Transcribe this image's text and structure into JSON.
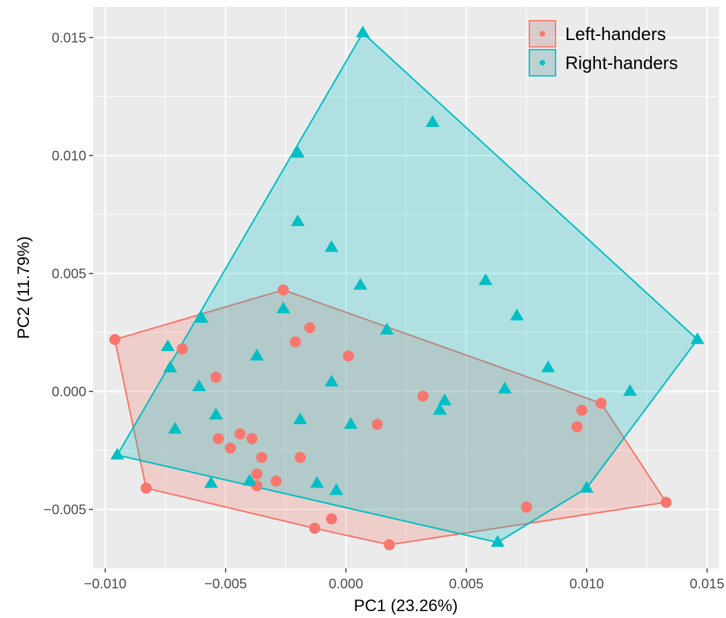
{
  "chart_data": {
    "type": "scatter",
    "xlabel": "PC1 (23.26%)",
    "ylabel": "PC2 (11.79%)",
    "xlim": [
      -0.0105,
      0.0155
    ],
    "ylim": [
      -0.0075,
      0.0163
    ],
    "x_ticks": [
      -0.01,
      -0.005,
      0.0,
      0.005,
      0.01,
      0.015
    ],
    "x_tick_labels": [
      "−0.010",
      "−0.005",
      "0.000",
      "0.005",
      "0.010",
      "0.015"
    ],
    "y_ticks": [
      -0.005,
      0.0,
      0.005,
      0.01,
      0.015
    ],
    "y_tick_labels": [
      "−0.005",
      "0.000",
      "0.005",
      "0.010",
      "0.015"
    ],
    "grid": true,
    "legend_position": "top-right",
    "series": [
      {
        "name": "Left-handers",
        "marker": "circle",
        "color": "#F8766D",
        "hull_fill_opacity": 0.25,
        "points": [
          [
            -0.0096,
            0.0022
          ],
          [
            -0.0083,
            -0.0041
          ],
          [
            -0.0068,
            0.0018
          ],
          [
            -0.0054,
            0.0006
          ],
          [
            -0.0053,
            -0.002
          ],
          [
            -0.0048,
            -0.0024
          ],
          [
            -0.0044,
            -0.0018
          ],
          [
            -0.0039,
            -0.002
          ],
          [
            -0.0037,
            -0.0035
          ],
          [
            -0.0037,
            -0.004
          ],
          [
            -0.0035,
            -0.0028
          ],
          [
            -0.0029,
            -0.0038
          ],
          [
            -0.0026,
            0.0043
          ],
          [
            -0.0021,
            0.0021
          ],
          [
            -0.0019,
            -0.0028
          ],
          [
            -0.0015,
            0.0027
          ],
          [
            -0.0013,
            -0.0058
          ],
          [
            -0.0006,
            -0.0054
          ],
          [
            0.0001,
            0.0015
          ],
          [
            0.0013,
            -0.0014
          ],
          [
            0.0018,
            -0.0065
          ],
          [
            0.0032,
            -0.0002
          ],
          [
            0.0075,
            -0.0049
          ],
          [
            0.0096,
            -0.0015
          ],
          [
            0.0098,
            -0.0008
          ],
          [
            0.0106,
            -0.0005
          ],
          [
            0.0133,
            -0.0047
          ]
        ],
        "hull": [
          [
            -0.0096,
            0.0022
          ],
          [
            -0.0083,
            -0.0041
          ],
          [
            -0.0013,
            -0.0058
          ],
          [
            0.0018,
            -0.0065
          ],
          [
            0.0133,
            -0.0047
          ],
          [
            0.0106,
            -0.0005
          ],
          [
            -0.0026,
            0.0043
          ]
        ]
      },
      {
        "name": "Right-handers",
        "marker": "triangle",
        "color": "#00BFC4",
        "hull_fill_opacity": 0.25,
        "points": [
          [
            0.0007,
            0.0152
          ],
          [
            0.0036,
            0.0114
          ],
          [
            -0.002,
            0.0101
          ],
          [
            -0.002,
            0.0072
          ],
          [
            -0.0006,
            0.0061
          ],
          [
            0.0006,
            0.0045
          ],
          [
            0.0058,
            0.0047
          ],
          [
            0.0071,
            0.0032
          ],
          [
            -0.0026,
            0.0035
          ],
          [
            -0.006,
            0.0031
          ],
          [
            0.0017,
            0.0026
          ],
          [
            -0.0074,
            0.0019
          ],
          [
            -0.0073,
            0.001
          ],
          [
            -0.0037,
            0.0015
          ],
          [
            0.0084,
            0.001
          ],
          [
            0.0146,
            0.0022
          ],
          [
            -0.0061,
            0.0002
          ],
          [
            -0.0006,
            0.0004
          ],
          [
            0.0066,
            0.0001
          ],
          [
            0.0118,
            0.0
          ],
          [
            0.0041,
            -0.0004
          ],
          [
            0.0039,
            -0.0008
          ],
          [
            -0.0054,
            -0.001
          ],
          [
            -0.0019,
            -0.0012
          ],
          [
            0.0002,
            -0.0014
          ],
          [
            -0.0071,
            -0.0016
          ],
          [
            -0.0095,
            -0.0027
          ],
          [
            -0.0056,
            -0.0039
          ],
          [
            -0.004,
            -0.0038
          ],
          [
            -0.0012,
            -0.0039
          ],
          [
            -0.0004,
            -0.0042
          ],
          [
            0.01,
            -0.0041
          ],
          [
            0.0063,
            -0.0064
          ]
        ],
        "hull": [
          [
            0.0007,
            0.0152
          ],
          [
            0.0146,
            0.0022
          ],
          [
            0.01,
            -0.0041
          ],
          [
            0.0063,
            -0.0064
          ],
          [
            -0.0095,
            -0.0027
          ]
        ]
      }
    ]
  }
}
